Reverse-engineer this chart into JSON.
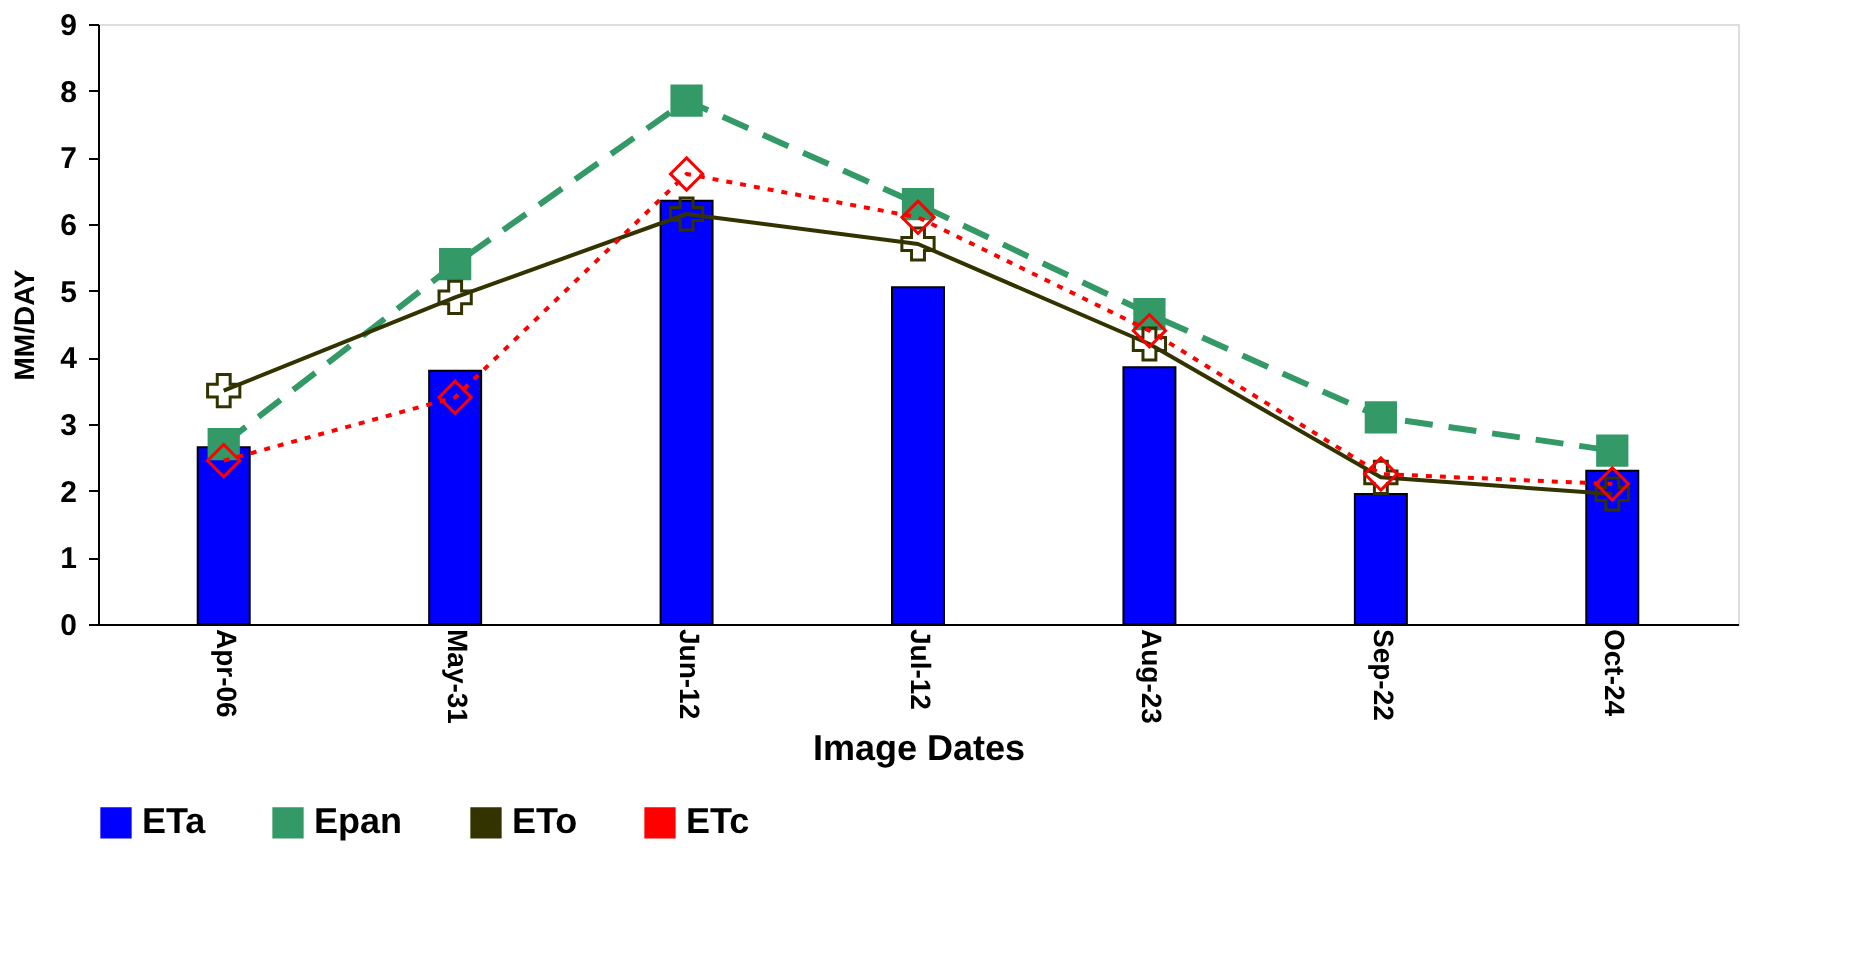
{
  "chart_data": {
    "type": "bar",
    "xlabel": "Image Dates",
    "ylabel": "MM/DAY",
    "categories": [
      "Apr-06",
      "May-31",
      "Jun-12",
      "Jul-12",
      "Aug-23",
      "Sep-22",
      "Oct-24"
    ],
    "ylim": [
      0,
      9
    ],
    "yticks": [
      0,
      1,
      2,
      3,
      4,
      5,
      6,
      7,
      8,
      9
    ],
    "grid": false,
    "legend": "bottom",
    "series": [
      {
        "name": "ETa",
        "color": "#0000ff",
        "values": [
          2.65,
          3.8,
          6.35,
          5.05,
          3.85,
          1.95,
          2.3
        ]
      },
      {
        "name": "Epan",
        "type": "line",
        "color": "#339966",
        "marker": "square",
        "line_style": "dashed",
        "values": [
          2.7,
          5.4,
          7.85,
          6.3,
          4.65,
          3.1,
          2.6
        ]
      },
      {
        "name": "ETo",
        "type": "line",
        "color": "#333300",
        "marker": "cross",
        "line_style": "solid",
        "values": [
          3.5,
          4.9,
          6.15,
          5.7,
          4.2,
          2.2,
          1.95
        ]
      },
      {
        "name": "ETc",
        "type": "line",
        "color": "#ff0000",
        "marker": "diamond",
        "line_style": "dotted",
        "values": [
          2.45,
          3.4,
          6.75,
          6.1,
          4.4,
          2.25,
          2.1
        ]
      }
    ]
  }
}
